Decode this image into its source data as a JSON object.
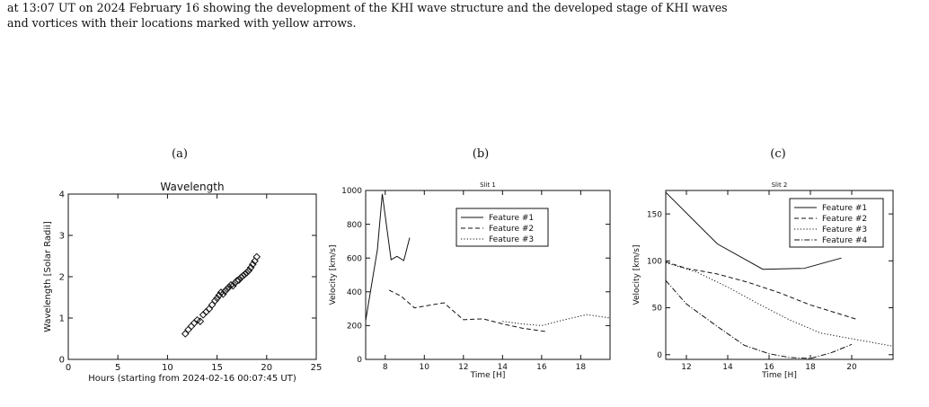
{
  "caption": {
    "line1": "at 13:07 UT on 2024 February 16 showing the development of the KHI wave structure and the developed stage of KHI waves",
    "line2": "and vortices with their locations marked with yellow arrows."
  },
  "panels": [
    {
      "label": "(a)"
    },
    {
      "label": "(b)"
    },
    {
      "label": "(c)"
    }
  ],
  "chart_data": [
    {
      "type": "scatter",
      "title": "Wavelength",
      "xlabel": "Hours (starting from 2024-02-16 00:07:45 UT)",
      "ylabel": "Wavelength [Solar Radii]",
      "xlim": [
        0,
        25
      ],
      "ylim": [
        0,
        4
      ],
      "xticks": [
        0,
        5,
        10,
        15,
        20,
        25
      ],
      "yticks": [
        0,
        1,
        2,
        3,
        4
      ],
      "marker": "diamond",
      "grid": false,
      "x": [
        11.8,
        12.1,
        12.4,
        12.7,
        13.0,
        13.3,
        13.6,
        13.9,
        14.2,
        14.5,
        14.8,
        15.0,
        15.2,
        15.4,
        15.6,
        15.8,
        16.0,
        16.2,
        16.4,
        16.6,
        16.8,
        17.0,
        17.2,
        17.4,
        17.6,
        17.8,
        18.0,
        18.2,
        18.4,
        18.6,
        18.8,
        19.0
      ],
      "y": [
        0.62,
        0.72,
        0.8,
        0.88,
        0.95,
        0.92,
        1.08,
        1.15,
        1.22,
        1.32,
        1.42,
        1.48,
        1.55,
        1.62,
        1.58,
        1.65,
        1.7,
        1.75,
        1.8,
        1.78,
        1.85,
        1.9,
        1.92,
        1.98,
        2.02,
        2.06,
        2.1,
        2.15,
        2.22,
        2.3,
        2.38,
        2.48
      ]
    },
    {
      "type": "line",
      "title": "Slit 1",
      "xlabel": "Time [H]",
      "ylabel": "Velocity [km/s]",
      "xlim": [
        7,
        19.5
      ],
      "ylim": [
        0,
        1000
      ],
      "xticks": [
        8,
        10,
        12,
        14,
        16,
        18
      ],
      "yticks": [
        0,
        200,
        400,
        600,
        800,
        1000
      ],
      "legend": "top-right",
      "series": [
        {
          "name": "Feature #1",
          "dash": "solid",
          "x": [
            7.0,
            7.6,
            7.85,
            8.3,
            8.6,
            8.95,
            9.25
          ],
          "y": [
            230,
            650,
            980,
            590,
            610,
            585,
            720
          ]
        },
        {
          "name": "Feature #2",
          "dash": "dashed",
          "x": [
            8.2,
            8.8,
            9.5,
            10.0,
            11.0,
            12.0,
            13.0,
            14.0,
            15.0,
            16.2
          ],
          "y": [
            410,
            375,
            305,
            315,
            335,
            235,
            240,
            210,
            185,
            165
          ]
        },
        {
          "name": "Feature #3",
          "dash": "dotted",
          "x": [
            14.0,
            15.0,
            16.0,
            17.0,
            18.3,
            19.5
          ],
          "y": [
            225,
            210,
            200,
            230,
            265,
            245
          ]
        }
      ]
    },
    {
      "type": "line",
      "title": "Slit 2",
      "xlabel": "Time [H]",
      "ylabel": "Velocity [km/s]",
      "xlim": [
        11,
        22
      ],
      "ylim": [
        -5,
        175
      ],
      "xticks": [
        12,
        14,
        16,
        18,
        20
      ],
      "yticks": [
        0,
        50,
        100,
        150
      ],
      "legend": "top-right",
      "series": [
        {
          "name": "Feature #1",
          "dash": "solid",
          "x": [
            11.0,
            13.5,
            15.7,
            17.7,
            19.5
          ],
          "y": [
            173,
            118,
            91,
            92,
            103
          ]
        },
        {
          "name": "Feature #2",
          "dash": "dashed",
          "x": [
            11.0,
            12.0,
            13.5,
            15.0,
            16.5,
            18.0,
            20.2
          ],
          "y": [
            99,
            92,
            86,
            77,
            66,
            53,
            38
          ]
        },
        {
          "name": "Feature #3",
          "dash": "dotted",
          "x": [
            11.0,
            12.5,
            14.0,
            15.5,
            17.0,
            18.5,
            20.0,
            22.0
          ],
          "y": [
            98,
            88,
            72,
            54,
            37,
            23,
            17,
            9
          ]
        },
        {
          "name": "Feature #4",
          "dash": "dashdot",
          "x": [
            11.0,
            12.0,
            13.5,
            14.8,
            16.0,
            17.0,
            18.0,
            19.0,
            20.0
          ],
          "y": [
            79,
            54,
            30,
            10,
            1,
            -3,
            -4,
            2,
            11
          ]
        }
      ]
    }
  ]
}
